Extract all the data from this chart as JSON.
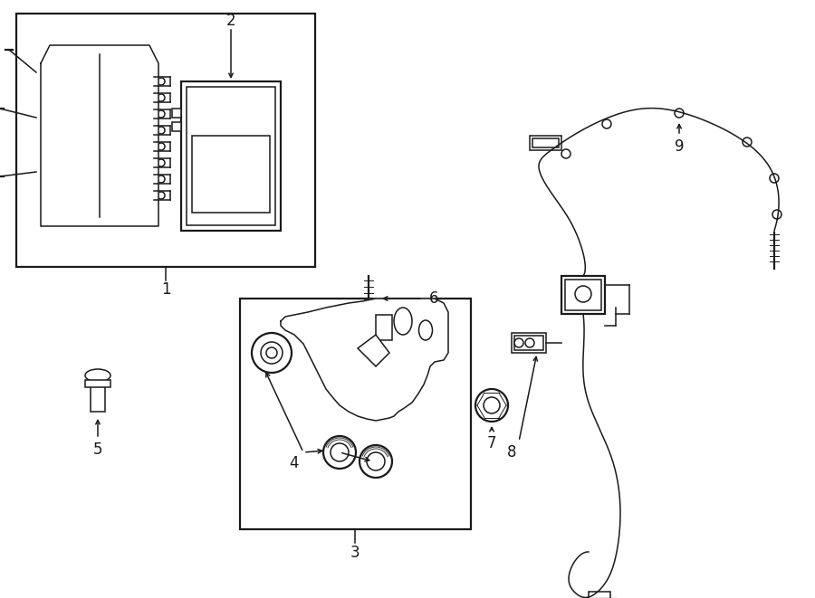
{
  "bg_color": "#ffffff",
  "line_color": "#1a1a1a",
  "figsize": [
    9.0,
    6.61
  ],
  "dpi": 100,
  "lw": 1.1,
  "lw_thick": 1.6
}
